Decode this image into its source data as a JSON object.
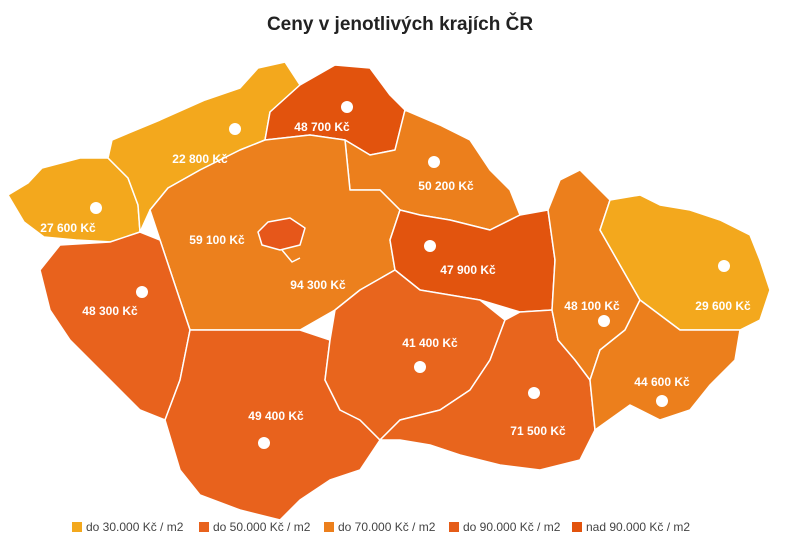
{
  "title": "Ceny v jenotlivých krajích ČR",
  "regions": [
    {
      "label": "27 600 Kč",
      "color": "#f3a81d"
    },
    {
      "label": "22 800 Kč",
      "color": "#f3a81d"
    },
    {
      "label": "48 700 Kč",
      "color": "#e2530d"
    },
    {
      "label": "50 200 Kč",
      "color": "#ec7f1c"
    },
    {
      "label": "94 300 Kč",
      "color": "#ec801d"
    },
    {
      "label": "59 100 Kč",
      "color": "#e6571a"
    },
    {
      "label": "47 900 Kč",
      "color": "#e2540e"
    },
    {
      "label": "48 300 Kč",
      "color": "#e8621d"
    },
    {
      "label": "49 400 Kč",
      "color": "#e8621d"
    },
    {
      "label": "41 400 Kč",
      "color": "#e8651d"
    },
    {
      "label": "71 500 Kč",
      "color": "#e8651d"
    },
    {
      "label": "48 100 Kč",
      "color": "#ec7f1c"
    },
    {
      "label": "29 600 Kč",
      "color": "#f3a81d"
    },
    {
      "label": "44 600 Kč",
      "color": "#ec7f1c"
    }
  ],
  "legend": [
    {
      "label": "do 30.000 Kč / m2",
      "color": "#f3a81d"
    },
    {
      "label": "do 50.000 Kč / m2",
      "color": "#e8621d"
    },
    {
      "label": "do 70.000 Kč / m2",
      "color": "#ec7f1c"
    },
    {
      "label": "do 90.000 Kč / m2",
      "color": "#e55c18"
    },
    {
      "label": "nad 90.000 Kč / m2",
      "color": "#e2530d"
    }
  ]
}
